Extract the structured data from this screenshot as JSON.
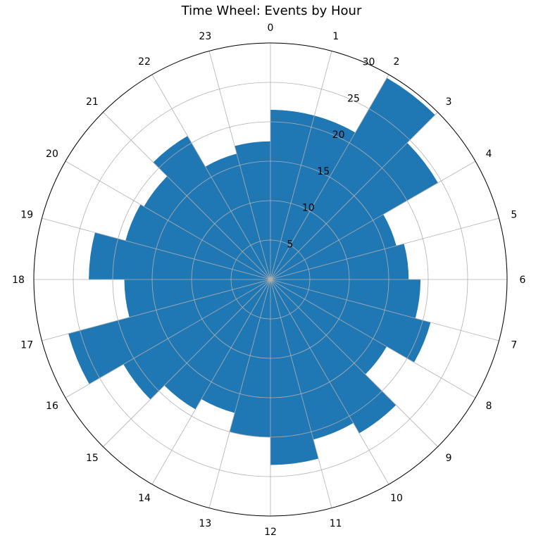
{
  "chart_data": {
    "type": "bar",
    "subtype": "polar",
    "title": "Time Wheel: Events by Hour",
    "categories": [
      "0",
      "1",
      "2",
      "3",
      "4",
      "5",
      "6",
      "7",
      "8",
      "9",
      "10",
      "11",
      "12",
      "13",
      "14",
      "15",
      "16",
      "17",
      "18",
      "19",
      "20",
      "21",
      "22",
      "23"
    ],
    "series": [
      {
        "values": [
          21.5,
          21.5,
          29.5,
          24.5,
          16.5,
          17.5,
          19,
          21,
          17,
          22.5,
          21,
          23.5,
          20,
          17.5,
          19,
          21.5,
          26.5,
          18.5,
          23,
          19,
          18.5,
          21,
          16.5,
          17.5
        ],
        "color": "#1f77b4"
      }
    ],
    "r_ticks": [
      "5",
      "10",
      "15",
      "20",
      "25",
      "30"
    ],
    "rlim": [
      0,
      30
    ],
    "grid": true,
    "direction": "clockwise",
    "zero_location": "top",
    "legend": "none"
  }
}
